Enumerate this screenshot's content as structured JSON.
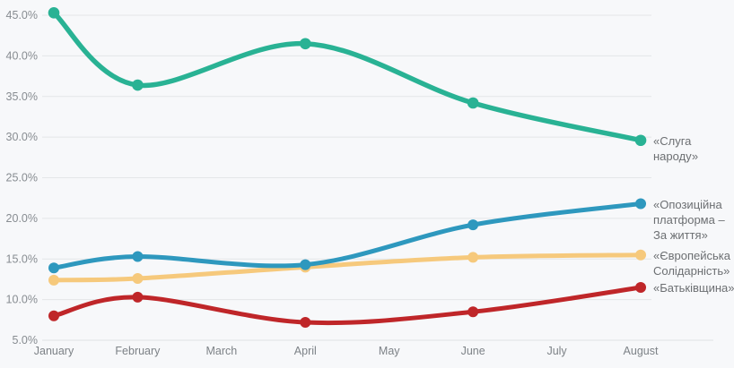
{
  "page": {
    "background": "#f7f8fa",
    "gridline_color": "#e4e6e8",
    "axis_line_color": "#dfe2e4",
    "tick_text_color": "#878c91",
    "legend_text_color": "#6c6f72"
  },
  "chart_data": {
    "type": "line",
    "title": "",
    "xlabel": "",
    "ylabel": "",
    "grid": "horizontal-only",
    "legend_position": "right-of-line-ends",
    "x_categories": [
      "January",
      "February",
      "March",
      "April",
      "May",
      "June",
      "July",
      "August"
    ],
    "y_ticks": [
      {
        "label": "45.0%",
        "value": 45
      },
      {
        "label": "40.0%",
        "value": 40
      },
      {
        "label": "35.0%",
        "value": 35
      },
      {
        "label": "30.0%",
        "value": 30
      },
      {
        "label": "25.0%",
        "value": 25
      },
      {
        "label": "20.0%",
        "value": 20
      },
      {
        "label": "15.0%",
        "value": 15
      },
      {
        "label": "10.0%",
        "value": 10
      },
      {
        "label": "5.0%",
        "value": 5
      }
    ],
    "ylim": [
      5,
      47.5
    ],
    "unit": "%",
    "series": [
      {
        "name": "«Слуга народу»",
        "color": "#29b294",
        "months": [
          "January",
          "February",
          "April",
          "June",
          "August"
        ],
        "values": [
          45.3,
          36.4,
          41.5,
          34.2,
          29.6
        ]
      },
      {
        "name": "«Опозиційна платформа – За життя»",
        "color": "#2e98be",
        "months": [
          "January",
          "February",
          "April",
          "June",
          "August"
        ],
        "values": [
          13.9,
          15.3,
          14.3,
          19.2,
          21.8
        ]
      },
      {
        "name": "«Європейська Солідарність»",
        "color": "#f6c97c",
        "months": [
          "January",
          "February",
          "April",
          "June",
          "August"
        ],
        "values": [
          12.4,
          12.6,
          14.0,
          15.2,
          15.5
        ]
      },
      {
        "name": "«Батьківщина»",
        "color": "#bf2629",
        "months": [
          "January",
          "February",
          "April",
          "June",
          "August"
        ],
        "values": [
          8.0,
          10.3,
          7.2,
          8.5,
          11.5
        ]
      }
    ]
  }
}
